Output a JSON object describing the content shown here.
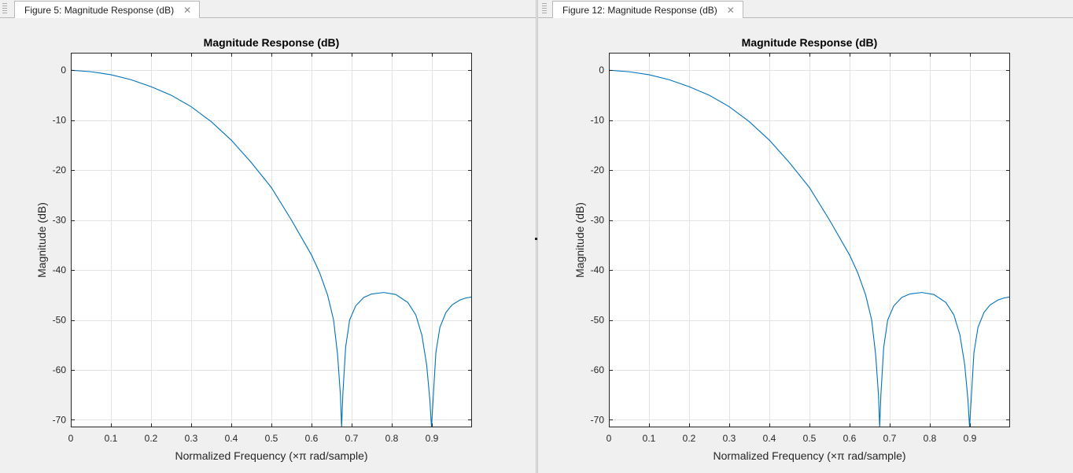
{
  "figures": [
    {
      "tab": {
        "title": "Figure 5: Magnitude Response (dB)",
        "close_icon": "close-icon"
      }
    },
    {
      "tab": {
        "title": "Figure 12: Magnitude Response (dB)",
        "close_icon": "close-icon"
      }
    }
  ],
  "line_color": "#0072bd",
  "chart_data": [
    {
      "type": "line",
      "title": "Magnitude Response (dB)",
      "xlabel": "Normalized Frequency (×π rad/sample)",
      "ylabel": "Magnitude (dB)",
      "xlim": [
        0,
        1
      ],
      "ylim": [
        -71.5,
        3.5
      ],
      "grid": true,
      "x_ticks": [
        0,
        0.1,
        0.2,
        0.3,
        0.4,
        0.5,
        0.6,
        0.7,
        0.8,
        0.9
      ],
      "x_tick_labels": [
        "0",
        "0.1",
        "0.2",
        "0.3",
        "0.4",
        "0.5",
        "0.6",
        "0.7",
        "0.8",
        "0.9"
      ],
      "y_ticks": [
        0,
        -10,
        -20,
        -30,
        -40,
        -50,
        -60,
        -70
      ],
      "y_tick_labels": [
        "0",
        "-10",
        "-20",
        "-30",
        "-40",
        "-50",
        "-60",
        "-70"
      ],
      "series": [
        {
          "x": [
            0,
            0.05,
            0.1,
            0.15,
            0.2,
            0.25,
            0.3,
            0.35,
            0.4,
            0.45,
            0.5,
            0.55,
            0.6,
            0.62,
            0.64,
            0.655,
            0.665,
            0.672,
            0.675,
            0.678,
            0.685,
            0.695,
            0.71,
            0.73,
            0.75,
            0.78,
            0.81,
            0.84,
            0.86,
            0.875,
            0.887,
            0.895,
            0.899,
            0.903,
            0.91,
            0.92,
            0.935,
            0.95,
            0.97,
            0.985,
            1.0
          ],
          "y": [
            0,
            -0.3,
            -0.9,
            -1.9,
            -3.3,
            -5.0,
            -7.3,
            -10.3,
            -14.0,
            -18.5,
            -23.5,
            -30.0,
            -37.0,
            -40.5,
            -45.0,
            -50.0,
            -57.0,
            -65.0,
            -71.5,
            -65.0,
            -55.5,
            -50.0,
            -47.2,
            -45.5,
            -44.8,
            -44.5,
            -44.9,
            -46.5,
            -49.0,
            -53.0,
            -59.0,
            -66.0,
            -71.5,
            -66.0,
            -56.5,
            -51.5,
            -48.5,
            -47.0,
            -46.0,
            -45.6,
            -45.4
          ]
        }
      ]
    },
    {
      "type": "line",
      "title": "Magnitude Response (dB)",
      "xlabel": "Normalized Frequency (×π rad/sample)",
      "ylabel": "Magnitude (dB)",
      "xlim": [
        0,
        1
      ],
      "ylim": [
        -71.5,
        3.5
      ],
      "grid": true,
      "x_ticks": [
        0,
        0.1,
        0.2,
        0.3,
        0.4,
        0.5,
        0.6,
        0.7,
        0.8,
        0.9
      ],
      "x_tick_labels": [
        "0",
        "0.1",
        "0.2",
        "0.3",
        "0.4",
        "0.5",
        "0.6",
        "0.7",
        "0.8",
        "0.9"
      ],
      "y_ticks": [
        0,
        -10,
        -20,
        -30,
        -40,
        -50,
        -60,
        -70
      ],
      "y_tick_labels": [
        "0",
        "-10",
        "-20",
        "-30",
        "-40",
        "-50",
        "-60",
        "-70"
      ],
      "series": [
        {
          "x": [
            0,
            0.05,
            0.1,
            0.15,
            0.2,
            0.25,
            0.3,
            0.35,
            0.4,
            0.45,
            0.5,
            0.55,
            0.6,
            0.62,
            0.64,
            0.655,
            0.665,
            0.672,
            0.675,
            0.678,
            0.685,
            0.695,
            0.71,
            0.73,
            0.75,
            0.78,
            0.81,
            0.84,
            0.86,
            0.875,
            0.887,
            0.895,
            0.899,
            0.903,
            0.91,
            0.92,
            0.935,
            0.95,
            0.97,
            0.985,
            1.0
          ],
          "y": [
            0,
            -0.3,
            -0.9,
            -1.9,
            -3.3,
            -5.0,
            -7.3,
            -10.3,
            -14.0,
            -18.5,
            -23.5,
            -30.0,
            -37.0,
            -40.5,
            -45.0,
            -50.0,
            -57.0,
            -65.0,
            -71.5,
            -65.0,
            -55.5,
            -50.0,
            -47.2,
            -45.5,
            -44.8,
            -44.5,
            -44.9,
            -46.5,
            -49.0,
            -53.0,
            -59.0,
            -66.0,
            -71.5,
            -66.0,
            -56.5,
            -51.5,
            -48.5,
            -47.0,
            -46.0,
            -45.6,
            -45.4
          ]
        }
      ]
    }
  ]
}
